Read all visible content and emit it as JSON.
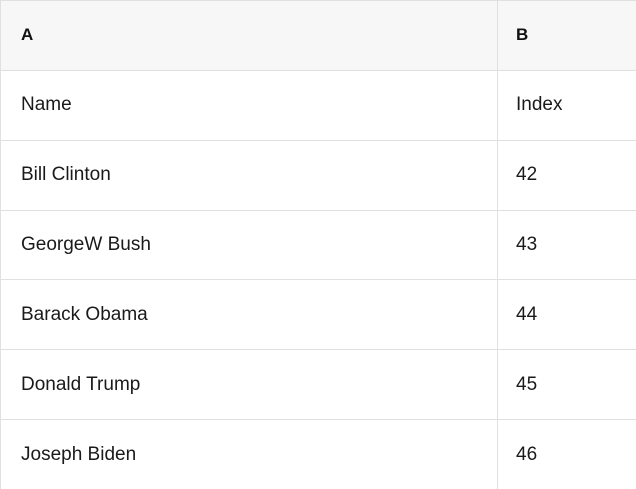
{
  "table": {
    "column_headers": [
      "A",
      "B"
    ],
    "rows": [
      [
        "Name",
        "Index"
      ],
      [
        "Bill Clinton",
        "42"
      ],
      [
        "GeorgeW Bush",
        "43"
      ],
      [
        "Barack Obama",
        "44"
      ],
      [
        "Donald Trump",
        "45"
      ],
      [
        "Joseph Biden",
        "46"
      ]
    ]
  },
  "colors": {
    "header_background": "#f7f7f8",
    "row_background": "#ffffff",
    "gridline": "#e0e0e0",
    "header_text": "#111111",
    "cell_text": "#1a1a1a"
  }
}
